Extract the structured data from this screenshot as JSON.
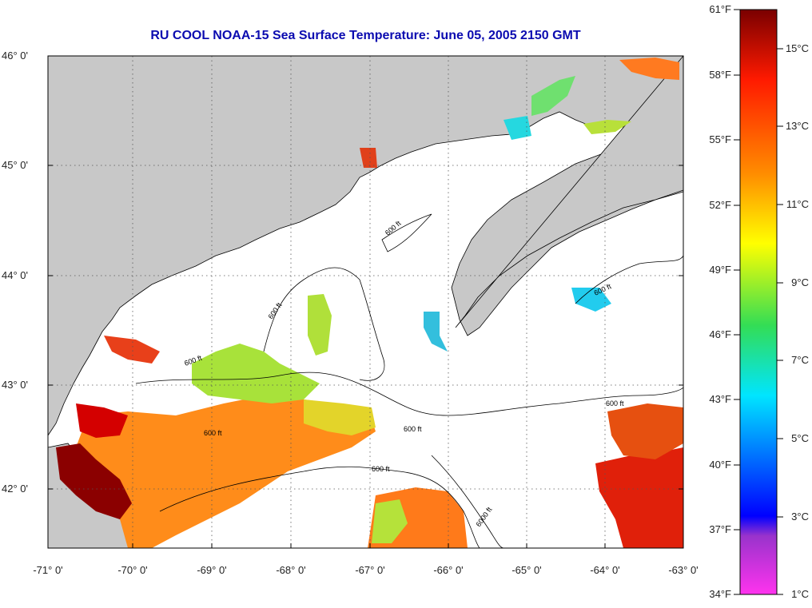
{
  "title": "RU COOL  NOAA-15  Sea Surface Temperature:  June 05, 2005 2150 GMT",
  "map": {
    "lat_labels": [
      "46° 0'",
      "45° 0'",
      "44° 0'",
      "43° 0'",
      "42° 0'"
    ],
    "lon_labels": [
      "-71° 0'",
      "-70° 0'",
      "-69° 0'",
      "-68° 0'",
      "-67° 0'",
      "-66° 0'",
      "-65° 0'",
      "-64° 0'",
      "-63° 0'"
    ],
    "lat_range": [
      41.5,
      46.1
    ],
    "lon_range": [
      -71.0,
      -63.0
    ],
    "contour_label": "600 ft",
    "contour_label_alt": "6000 ft",
    "land_color": "#c8c8c8",
    "water_color": "#ffffff"
  },
  "colorbar": {
    "fahrenheit_labels": [
      "61°F",
      "58°F",
      "55°F",
      "52°F",
      "49°F",
      "46°F",
      "43°F",
      "40°F",
      "37°F",
      "34°F"
    ],
    "celsius_labels": [
      "15°C",
      "13°C",
      "11°C",
      "9°C",
      "7°C",
      "5°C",
      "3°C",
      "1°C"
    ],
    "stops": [
      "#8b0000",
      "#ff1a00",
      "#ff8c00",
      "#ffff00",
      "#33dd55",
      "#00e5ff",
      "#0060ff",
      "#0000ff",
      "#9933cc",
      "#ff33ee"
    ]
  }
}
